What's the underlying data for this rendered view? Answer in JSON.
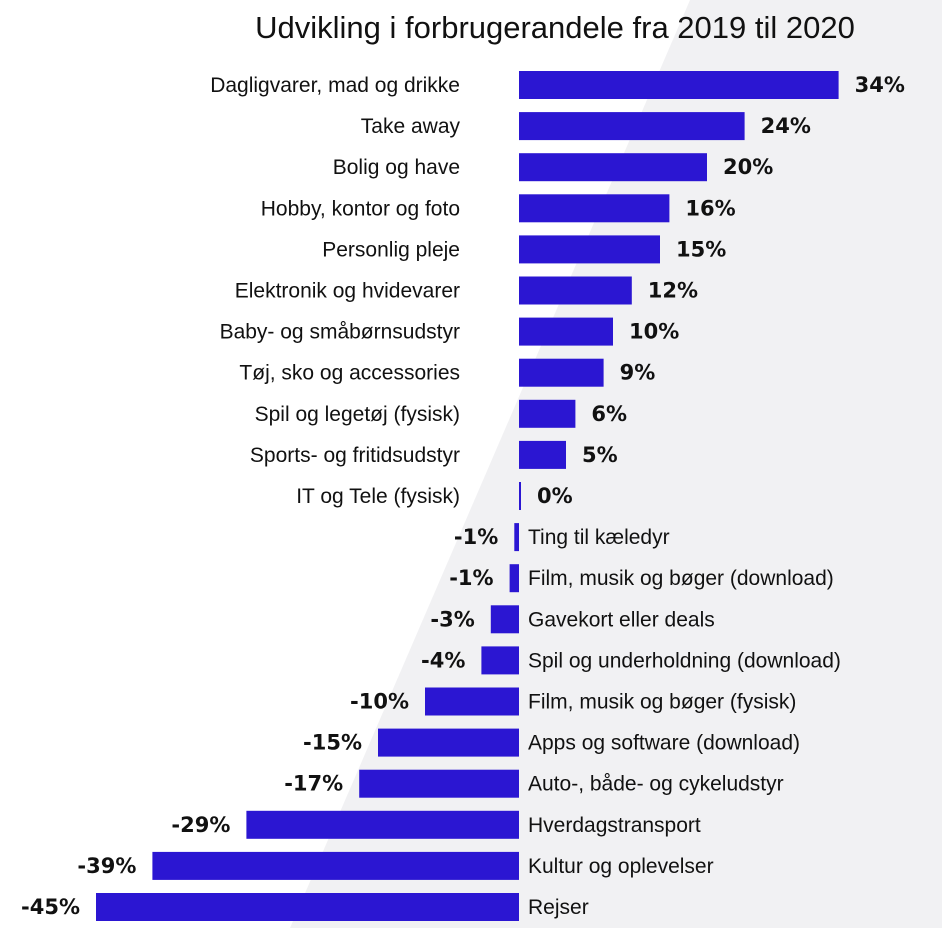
{
  "chart_data": {
    "type": "bar",
    "orientation": "horizontal",
    "title": "Udvikling i forbrugerandele fra 2019 til 2020",
    "categories": [
      "Dagligvarer, mad og drikke",
      "Take away",
      "Bolig og have",
      "Hobby, kontor og foto",
      "Personlig pleje",
      "Elektronik og hvidevarer",
      "Baby- og småbørnsudstyr",
      "Tøj, sko og accessories",
      "Spil og legetøj (fysisk)",
      "Sports- og fritidsudstyr",
      "IT og Tele (fysisk)",
      "Ting til kæledyr",
      "Film, musik og bøger (download)",
      "Gavekort eller deals",
      "Spil og underholdning (download)",
      "Film, musik og bøger (fysisk)",
      "Apps og software (download)",
      "Auto-, både- og cykeludstyr",
      "Hverdagstransport",
      "Kultur og oplevelser",
      "Rejser"
    ],
    "values": [
      34,
      24,
      20,
      16,
      15,
      12,
      10,
      9,
      6,
      5,
      0.2,
      -0.5,
      -1,
      -3,
      -4,
      -10,
      -15,
      -17,
      -29,
      -39,
      -45
    ],
    "value_labels": [
      "34%",
      "24%",
      "20%",
      "16%",
      "15%",
      "12%",
      "10%",
      "9%",
      "6%",
      "5%",
      "0%",
      "-1%",
      "-1%",
      "-3%",
      "-4%",
      "-10%",
      "-15%",
      "-17%",
      "-29%",
      "-39%",
      "-45%"
    ],
    "xlim": [
      -45,
      34
    ],
    "unit": "%",
    "grid": false,
    "legend": "none",
    "colors": {
      "bar": "#2b16d2",
      "text": "#111111",
      "background": "#ffffff",
      "background_shade": "#f1f1f3"
    }
  }
}
